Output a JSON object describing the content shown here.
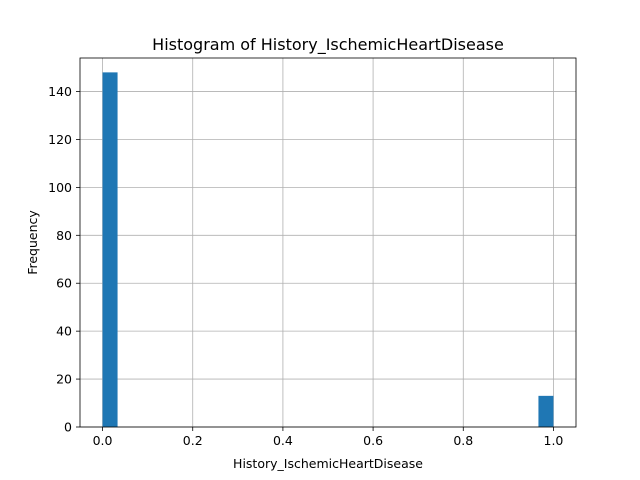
{
  "chart_data": {
    "type": "bar",
    "title": "Histogram of History_IschemicHeartDisease",
    "xlabel": "History_IschemicHeartDisease",
    "ylabel": "Frequency",
    "xlim": [
      -0.05,
      1.05
    ],
    "ylim": [
      0,
      154
    ],
    "x_ticks": [
      0.0,
      0.2,
      0.4,
      0.6,
      0.8,
      1.0
    ],
    "x_tick_labels": [
      "0.0",
      "0.2",
      "0.4",
      "0.6",
      "0.8",
      "1.0"
    ],
    "y_ticks": [
      0,
      20,
      40,
      60,
      80,
      100,
      120,
      140
    ],
    "y_tick_labels": [
      "0",
      "20",
      "40",
      "60",
      "80",
      "100",
      "120",
      "140"
    ],
    "bins": [
      {
        "x0": 0.0,
        "x1": 0.0333,
        "value": 148
      },
      {
        "x0": 0.9667,
        "x1": 1.0,
        "value": 13
      }
    ],
    "grid": true,
    "bar_color": "#1f77b4"
  }
}
